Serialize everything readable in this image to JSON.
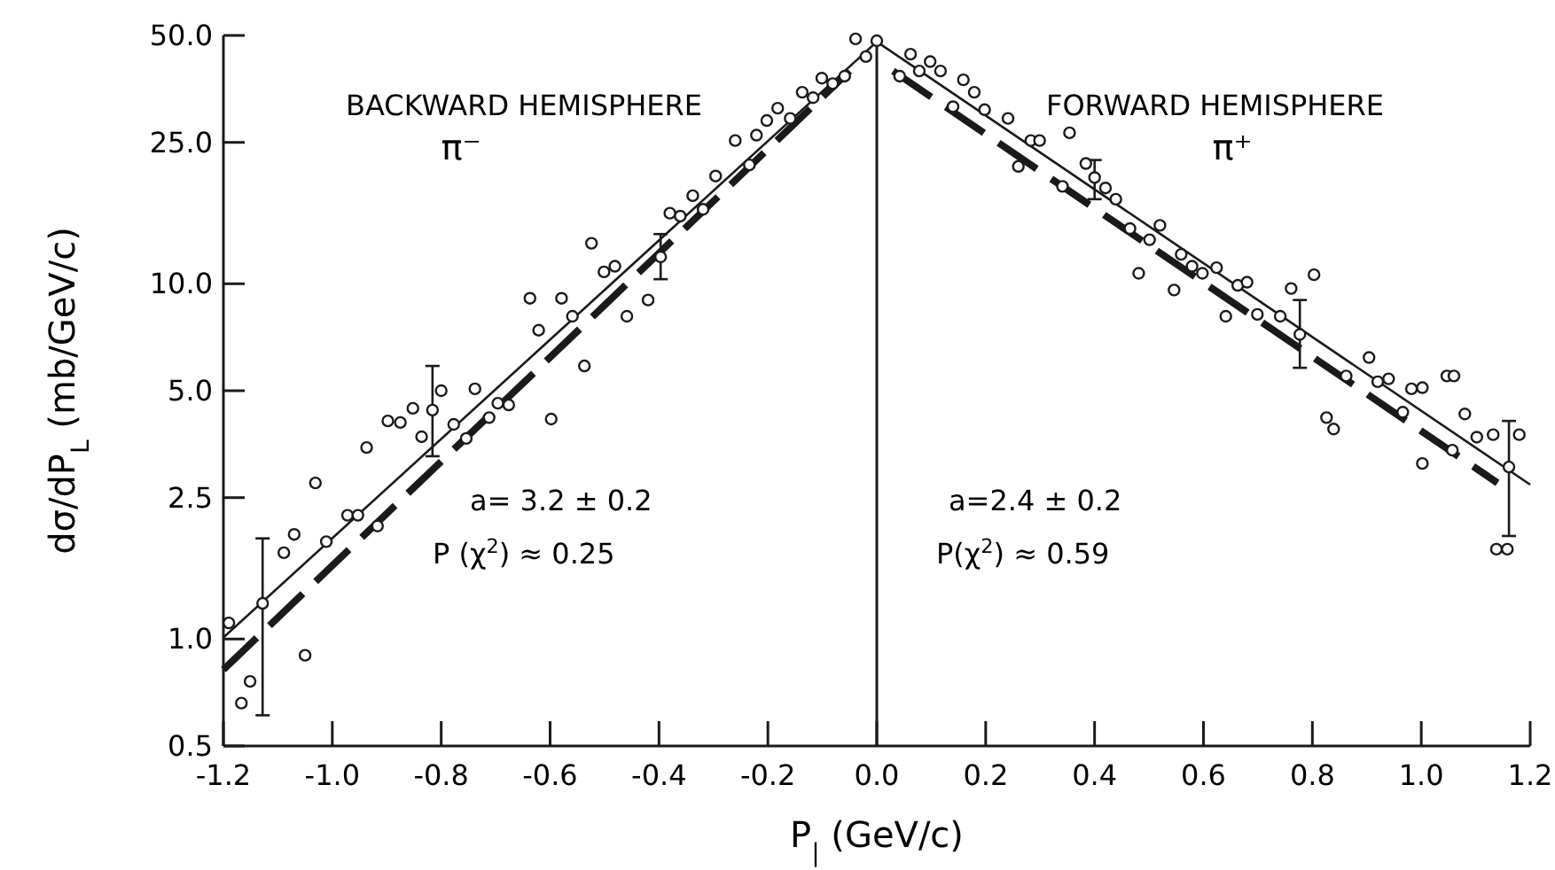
{
  "chart_data": {
    "type": "scatter",
    "xlabel": "P$_{|}$ (GeV/c)",
    "ylabel": "dσ/dP$_{L}$ (mb/GeV/c)",
    "log": "y",
    "grid": false,
    "xlim": [
      -1.2,
      1.2
    ],
    "xticks": [
      -1.2,
      {
        "value": -1,
        "label": "-1.0"
      },
      -0.8,
      -0.6,
      -0.4,
      -0.2,
      {
        "value": 0,
        "label": "0.0"
      },
      0.2,
      0.4,
      0.6,
      0.8,
      {
        "value": 1,
        "label": "1.0"
      },
      1.2
    ],
    "ylim": [
      0.5,
      50
    ],
    "yticks": [
      0.5,
      {
        "value": 1,
        "label": "1.0"
      },
      2.5,
      {
        "value": 5,
        "label": "5.0"
      },
      {
        "value": 10,
        "label": "10.0"
      },
      {
        "value": 25,
        "label": "25.0"
      },
      {
        "value": 50,
        "label": "50.0"
      }
    ],
    "ref_lines": [
      {
        "axis": "x",
        "value": 0,
        "color": "#1a1a1a"
      }
    ],
    "annotations": [
      "BACKWARD HEMISPHERE",
      "π⁻",
      "FORWARD HEMISPHERE",
      "π⁺",
      "a= 3.2 ± 0.2",
      "P (χ$^{2}$) ≈ 0.25",
      "a=2.4 ± 0.2",
      "P(χ$^{2}$) ≈ 0.59"
    ],
    "series": [
      {
        "marker": "circle",
        "color": "#1a1a1a",
        "x": [
          -1.167,
          -1.151,
          -1.19,
          -1.128,
          -1.05,
          -1.089,
          -1.07,
          -1.011,
          -1.031,
          -0.972,
          -0.953,
          -0.917,
          -0.937,
          -0.898,
          -0.875,
          -0.836,
          -0.852,
          -0.816,
          -0.8,
          -0.777,
          -0.754,
          -0.738,
          -0.712,
          -0.696,
          -0.676,
          -0.598,
          -0.637,
          -0.621,
          -0.579,
          -0.559,
          -0.537,
          -0.524,
          -0.501,
          -0.481,
          -0.459,
          -0.42,
          -0.397,
          -0.38,
          -0.361,
          -0.338,
          -0.319,
          -0.296,
          -0.26,
          -0.234,
          -0.221,
          -0.202,
          -0.182,
          -0.159,
          -0.137,
          -0.117,
          -0.101,
          -0.081,
          -0.059,
          -0.039,
          -0.02,
          0.0
        ],
        "values": [
          0.66,
          0.76,
          1.11,
          1.26,
          0.9,
          1.75,
          1.97,
          1.88,
          2.75,
          2.23,
          2.23,
          2.08,
          3.46,
          4.11,
          4.07,
          3.71,
          4.46,
          4.41,
          5.0,
          4.02,
          3.67,
          5.06,
          4.2,
          4.61,
          4.56,
          4.16,
          9.1,
          7.4,
          9.1,
          8.1,
          5.87,
          13.0,
          10.8,
          11.2,
          8.1,
          9.0,
          11.9,
          15.8,
          15.5,
          17.7,
          16.2,
          20.1,
          25.3,
          21.6,
          26.2,
          28.8,
          31.2,
          29.2,
          34.6,
          33.4,
          37.9,
          36.6,
          38.4,
          48.9,
          43.6,
          48.3
        ],
        "errors": [
          null,
          null,
          null,
          [
            0.61,
            1.92
          ],
          null,
          null,
          null,
          null,
          null,
          null,
          null,
          null,
          null,
          null,
          null,
          null,
          null,
          [
            3.27,
            5.87
          ],
          null,
          null,
          null,
          null,
          null,
          null,
          null,
          null,
          null,
          null,
          null,
          null,
          null,
          null,
          null,
          null,
          null,
          null,
          [
            10.3,
            13.8
          ],
          null,
          null,
          null,
          null,
          null,
          null,
          null,
          null,
          null,
          null,
          null,
          null,
          null,
          null,
          null,
          null,
          null,
          null,
          null
        ]
      },
      {
        "marker": "circle",
        "color": "#1a1a1a",
        "x": [
          0.042,
          0.062,
          0.078,
          0.098,
          0.117,
          0.14,
          0.159,
          0.179,
          0.198,
          0.241,
          0.26,
          0.283,
          0.299,
          0.341,
          0.354,
          0.384,
          0.4,
          0.42,
          0.439,
          0.465,
          0.481,
          0.501,
          0.52,
          0.546,
          0.559,
          0.579,
          0.598,
          0.624,
          0.641,
          0.663,
          0.68,
          0.699,
          0.741,
          0.761,
          0.777,
          0.803,
          0.826,
          0.839,
          0.862,
          0.904,
          0.92,
          0.94,
          0.966,
          0.982,
          1.002,
          1.002,
          1.047,
          1.06,
          1.057,
          1.08,
          1.102,
          1.132,
          1.161,
          1.18,
          1.138,
          1.158
        ],
        "values": [
          38.4,
          44.3,
          39.7,
          42.2,
          39.7,
          31.5,
          37.5,
          34.6,
          30.9,
          29.2,
          21.4,
          25.3,
          25.3,
          18.8,
          26.6,
          21.8,
          19.9,
          18.6,
          17.3,
          14.3,
          10.7,
          13.3,
          14.6,
          9.6,
          12.1,
          11.2,
          10.7,
          11.1,
          8.1,
          9.9,
          10.1,
          8.2,
          8.1,
          9.7,
          7.2,
          10.6,
          4.2,
          3.9,
          5.5,
          6.2,
          5.3,
          5.4,
          4.35,
          5.06,
          5.1,
          3.12,
          5.5,
          5.5,
          3.4,
          4.3,
          3.7,
          3.76,
          3.05,
          3.76,
          1.79,
          1.79
        ],
        "errors": [
          null,
          null,
          null,
          null,
          null,
          null,
          null,
          null,
          null,
          null,
          null,
          null,
          null,
          null,
          null,
          null,
          [
            17.3,
            22.3
          ],
          null,
          null,
          null,
          null,
          null,
          null,
          null,
          null,
          null,
          null,
          null,
          null,
          null,
          null,
          null,
          null,
          null,
          [
            5.8,
            9.0
          ],
          null,
          null,
          null,
          null,
          null,
          null,
          null,
          null,
          null,
          null,
          null,
          null,
          null,
          null,
          null,
          null,
          null,
          [
            1.95,
            4.11
          ],
          null,
          null,
          null
        ]
      },
      {
        "type": "line",
        "line_style": "solid",
        "color": "#1a1a1a",
        "x": [
          -1.2,
          0,
          1.2
        ],
        "values": [
          1.01,
          48,
          2.72
        ]
      },
      {
        "type": "line",
        "line_style": "dashed",
        "color": "#1a1a1a",
        "x": [
          -1.2,
          -0.05
        ],
        "values": [
          0.82,
          39.7
        ]
      },
      {
        "type": "line",
        "line_style": "dashed",
        "color": "#1a1a1a",
        "x": [
          0.03,
          1.14
        ],
        "values": [
          39.7,
          2.75
        ]
      }
    ]
  }
}
